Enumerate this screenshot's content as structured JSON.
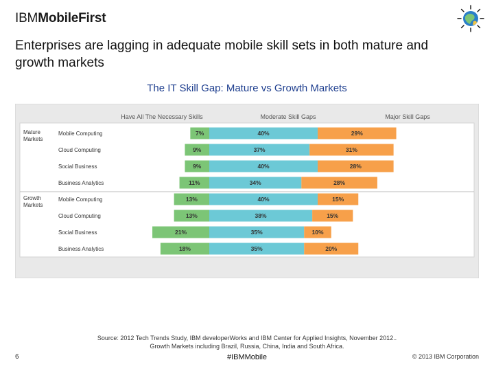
{
  "brand": {
    "prefix": "IBM",
    "name": "MobileFirst"
  },
  "headline": "Enterprises are lagging in adequate mobile skill sets in both mature and growth markets",
  "chart_data": {
    "type": "bar",
    "subtype": "diverging-stacked-horizontal",
    "title": "The IT Skill Gap: Mature vs Growth Markets",
    "legend_placement": "top",
    "series": [
      {
        "name": "Have All The Necessary Skills",
        "color": "#7cc576"
      },
      {
        "name": "Moderate Skill Gaps",
        "color": "#6cc9d6"
      },
      {
        "name": "Major Skill Gaps",
        "color": "#f7a04a"
      }
    ],
    "groups": [
      {
        "label": "Mature Markets",
        "rows": [
          {
            "category": "Mobile Computing",
            "have": 7,
            "moderate": 40,
            "major": 29
          },
          {
            "category": "Cloud Computing",
            "have": 9,
            "moderate": 37,
            "major": 31
          },
          {
            "category": "Social Business",
            "have": 9,
            "moderate": 40,
            "major": 28
          },
          {
            "category": "Business Analytics",
            "have": 11,
            "moderate": 34,
            "major": 28
          }
        ]
      },
      {
        "label": "Growth Markets",
        "rows": [
          {
            "category": "Mobile Computing",
            "have": 13,
            "moderate": 40,
            "major": 15
          },
          {
            "category": "Cloud Computing",
            "have": 13,
            "moderate": 38,
            "major": 15
          },
          {
            "category": "Social Business",
            "have": 21,
            "moderate": 35,
            "major": 10
          },
          {
            "category": "Business Analytics",
            "have": 18,
            "moderate": 35,
            "major": 20
          }
        ]
      }
    ]
  },
  "footer": {
    "source_line1": "Source: 2012 Tech Trends Study, IBM developerWorks and IBM Center for Applied Insights, November 2012..",
    "source_line2": "Growth Markets including Brazil, Russia, China, India and South Africa.",
    "page_number": "6",
    "hashtag": "#IBMMobile",
    "copyright": "© 2013 IBM Corporation"
  }
}
